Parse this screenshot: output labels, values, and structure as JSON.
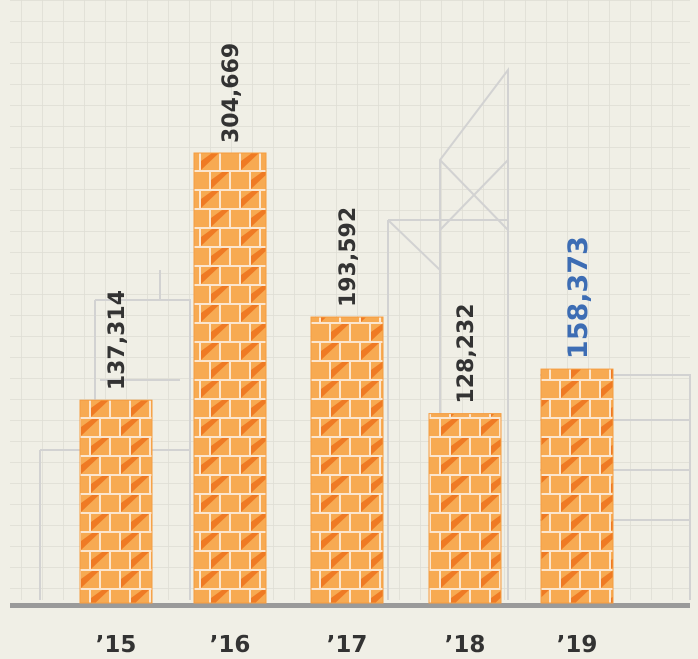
{
  "chart_data": {
    "type": "bar",
    "categories": [
      "’15",
      "’16",
      "’17",
      "’18",
      "’19"
    ],
    "values": [
      137314,
      304669,
      193592,
      128232,
      158373
    ],
    "value_labels": [
      "137,314",
      "304,669",
      "193,592",
      "128,232",
      "158,373"
    ],
    "value_label_colors": [
      "#333333",
      "#333333",
      "#333333",
      "#333333",
      "#3d6db4"
    ],
    "color": "#f59c40"
  }
}
